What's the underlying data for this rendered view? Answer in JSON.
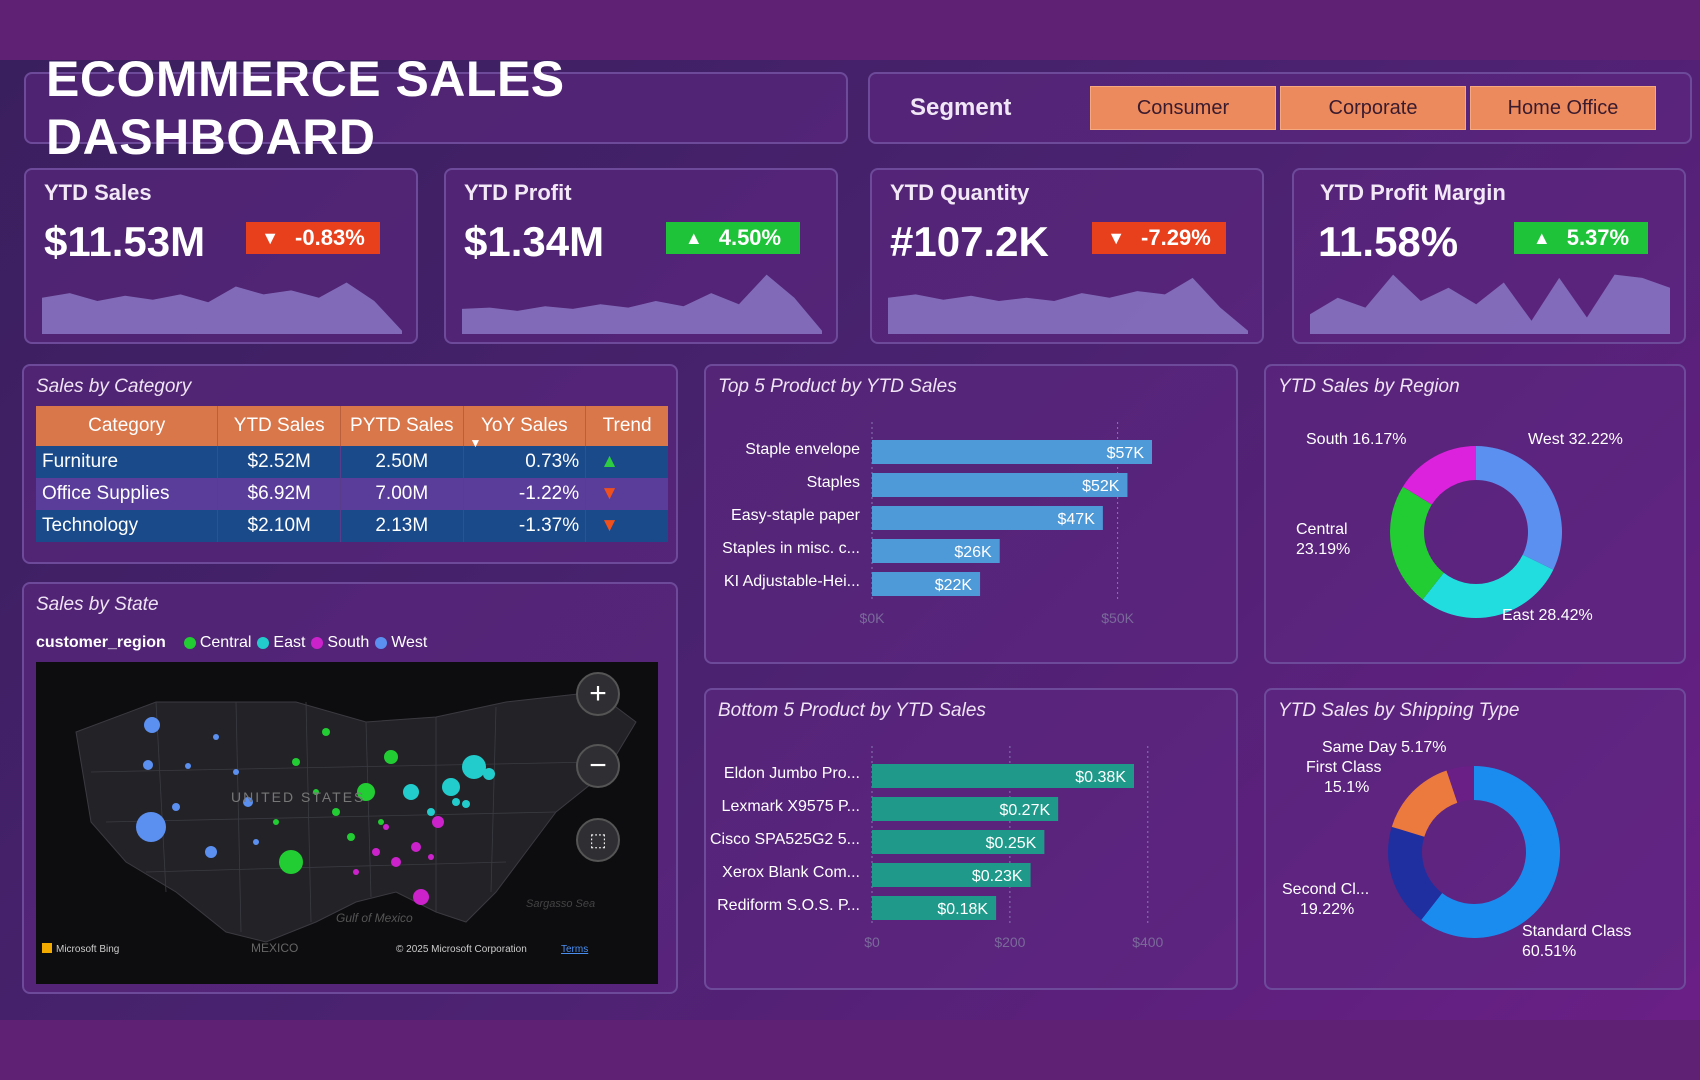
{
  "header": {
    "title": "ECOMMERCE SALES DASHBOARD"
  },
  "segment": {
    "label": "Segment",
    "options": [
      "Consumer",
      "Corporate",
      "Home Office"
    ]
  },
  "kpis": [
    {
      "title": "YTD Sales",
      "value": "$11.53M",
      "change": "-0.83%",
      "direction": "down",
      "spark": [
        0.55,
        0.62,
        0.5,
        0.58,
        0.52,
        0.6,
        0.48,
        0.72,
        0.6,
        0.66,
        0.55,
        0.78,
        0.5,
        0.05
      ]
    },
    {
      "title": "YTD Profit",
      "value": "$1.34M",
      "change": "4.50%",
      "direction": "up",
      "spark": [
        0.38,
        0.4,
        0.35,
        0.42,
        0.38,
        0.45,
        0.4,
        0.5,
        0.42,
        0.62,
        0.45,
        0.9,
        0.55,
        0.05
      ]
    },
    {
      "title": "YTD Quantity",
      "value": "#107.2K",
      "change": "-7.29%",
      "direction": "down",
      "spark": [
        0.55,
        0.6,
        0.52,
        0.58,
        0.5,
        0.55,
        0.5,
        0.62,
        0.55,
        0.65,
        0.6,
        0.85,
        0.4,
        0.05
      ]
    },
    {
      "title": "YTD Profit Margin",
      "value": "11.58%",
      "change": "5.37%",
      "direction": "up",
      "spark": [
        0.3,
        0.55,
        0.4,
        0.9,
        0.5,
        0.7,
        0.45,
        0.78,
        0.2,
        0.85,
        0.25,
        0.9,
        0.85,
        0.7
      ]
    }
  ],
  "sales_by_category": {
    "title": "Sales by Category",
    "columns": [
      "Category",
      "YTD Sales",
      "PYTD Sales",
      "YoY Sales",
      "Trend"
    ],
    "rows": [
      {
        "category": "Furniture",
        "ytd": "$2.52M",
        "pytd": "2.50M",
        "yoy": "0.73%",
        "trend": "up"
      },
      {
        "category": "Office Supplies",
        "ytd": "$6.92M",
        "pytd": "7.00M",
        "yoy": "-1.22%",
        "trend": "down"
      },
      {
        "category": "Technology",
        "ytd": "$2.10M",
        "pytd": "2.13M",
        "yoy": "-1.37%",
        "trend": "down"
      }
    ]
  },
  "sales_by_state": {
    "title": "Sales by State",
    "legend_title": "customer_region",
    "legend": [
      {
        "name": "Central",
        "color": "#22cc33"
      },
      {
        "name": "East",
        "color": "#22cccc"
      },
      {
        "name": "South",
        "color": "#cc22cc"
      },
      {
        "name": "West",
        "color": "#5b8ff0"
      }
    ],
    "map_text": {
      "country": "UNITED STATES",
      "gulf": "Gulf of Mexico",
      "mexico": "MEXICO",
      "sea": "Sargasso Sea",
      "bing": "Microsoft Bing",
      "copyright": "© 2025 Microsoft Corporation",
      "terms": "Terms"
    }
  },
  "top5": {
    "title": "Top 5 Product by YTD Sales",
    "axis": [
      "$0K",
      "$50K"
    ],
    "axis_max": 57,
    "products": [
      {
        "name": "Staple envelope",
        "value": 57,
        "label": "$57K"
      },
      {
        "name": "Staples",
        "value": 52,
        "label": "$52K"
      },
      {
        "name": "Easy-staple paper",
        "value": 47,
        "label": "$47K"
      },
      {
        "name": "Staples in misc. c...",
        "value": 26,
        "label": "$26K"
      },
      {
        "name": "KI Adjustable-Hei...",
        "value": 22,
        "label": "$22K"
      }
    ]
  },
  "bottom5": {
    "title": "Bottom 5 Product by YTD Sales",
    "axis": [
      "$0",
      "$200",
      "$400"
    ],
    "products": [
      {
        "name": "Eldon Jumbo Pro...",
        "value": 380,
        "label": "$0.38K"
      },
      {
        "name": "Lexmark X9575 P...",
        "value": 270,
        "label": "$0.27K"
      },
      {
        "name": "Cisco SPA525G2 5...",
        "value": 250,
        "label": "$0.25K"
      },
      {
        "name": "Xerox Blank Com...",
        "value": 230,
        "label": "$0.23K"
      },
      {
        "name": "Rediform S.O.S. P...",
        "value": 180,
        "label": "$0.18K"
      }
    ]
  },
  "region": {
    "title": "YTD Sales by Region",
    "slices": [
      {
        "name": "West",
        "pct": 32.22,
        "label": "West 32.22%",
        "color": "#5b8ff0"
      },
      {
        "name": "East",
        "pct": 28.42,
        "label": "East 28.42%",
        "color": "#22dde0"
      },
      {
        "name": "Central",
        "pct": 23.19,
        "label_line1": "Central",
        "label_line2": "23.19%",
        "color": "#22cc33"
      },
      {
        "name": "South",
        "pct": 16.17,
        "label": "South 16.17%",
        "color": "#dd22dd"
      }
    ]
  },
  "shipping": {
    "title": "YTD Sales by Shipping Type",
    "slices": [
      {
        "name": "Standard Class",
        "pct": 60.51,
        "label_line1": "Standard Class",
        "label_line2": "60.51%",
        "color": "#1a8cf0"
      },
      {
        "name": "Second Class",
        "pct": 19.22,
        "label_line1": "Second Cl...",
        "label_line2": "19.22%",
        "color": "#1f2fa0"
      },
      {
        "name": "First Class",
        "pct": 15.1,
        "label_line1": "First Class",
        "label_line2": "15.1%",
        "color": "#ec7a3e"
      },
      {
        "name": "Same Day",
        "pct": 5.17,
        "label": "Same Day 5.17%",
        "color": "#6a1f86"
      }
    ]
  }
}
